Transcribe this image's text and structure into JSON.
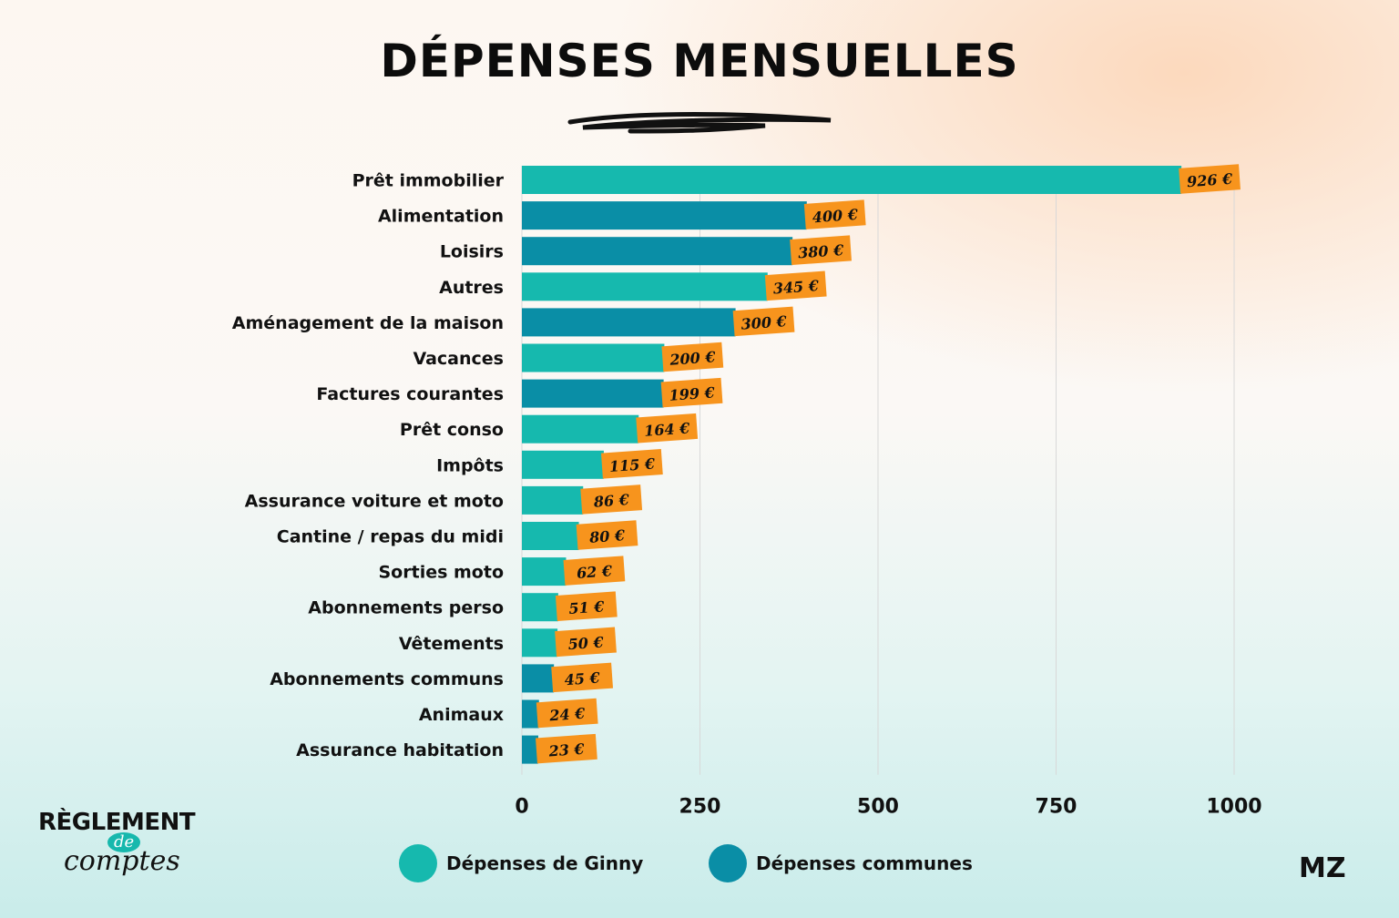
{
  "chart_data": {
    "type": "bar",
    "orientation": "horizontal",
    "title": "DÉPENSES MENSUELLES",
    "categories": [
      "Prêt immobilier",
      "Alimentation",
      "Loisirs",
      "Autres",
      "Aménagement de la maison",
      "Vacances",
      "Factures courantes",
      "Prêt conso",
      "Impôts",
      "Assurance voiture et moto",
      "Cantine / repas du midi",
      "Sorties moto",
      "Abonnements perso",
      "Vêtements",
      "Abonnements communs",
      "Animaux",
      "Assurance habitation"
    ],
    "values": [
      926,
      400,
      380,
      345,
      300,
      200,
      199,
      164,
      115,
      86,
      80,
      62,
      51,
      50,
      45,
      24,
      23
    ],
    "value_labels": [
      "926 €",
      "400 €",
      "380 €",
      "345 €",
      "300 €",
      "200 €",
      "199 €",
      "164 €",
      "115 €",
      "86 €",
      "80 €",
      "62 €",
      "51 €",
      "50 €",
      "45 €",
      "24 €",
      "23 €"
    ],
    "series_membership": [
      "Dépenses de Ginny",
      "Dépenses communes",
      "Dépenses communes",
      "Dépenses de Ginny",
      "Dépenses communes",
      "Dépenses de Ginny",
      "Dépenses communes",
      "Dépenses de Ginny",
      "Dépenses de Ginny",
      "Dépenses de Ginny",
      "Dépenses de Ginny",
      "Dépenses de Ginny",
      "Dépenses de Ginny",
      "Dépenses de Ginny",
      "Dépenses communes",
      "Dépenses communes",
      "Dépenses communes"
    ],
    "series": [
      {
        "name": "Dépenses de Ginny",
        "color": "#16b9ae"
      },
      {
        "name": "Dépenses communes",
        "color": "#0a8ea6"
      }
    ],
    "xlim": [
      0,
      1000
    ],
    "xticks": [
      0,
      250,
      500,
      750,
      1000
    ],
    "xtick_labels": [
      "0",
      "250",
      "500",
      "750",
      "1000"
    ],
    "grid": "vertical",
    "legend_position": "bottom",
    "label_color": "#f7941d"
  },
  "logo_left": {
    "line1": "RÈGLEMENT",
    "line2": "de",
    "line3": "comptes"
  },
  "logo_right": "MZ"
}
